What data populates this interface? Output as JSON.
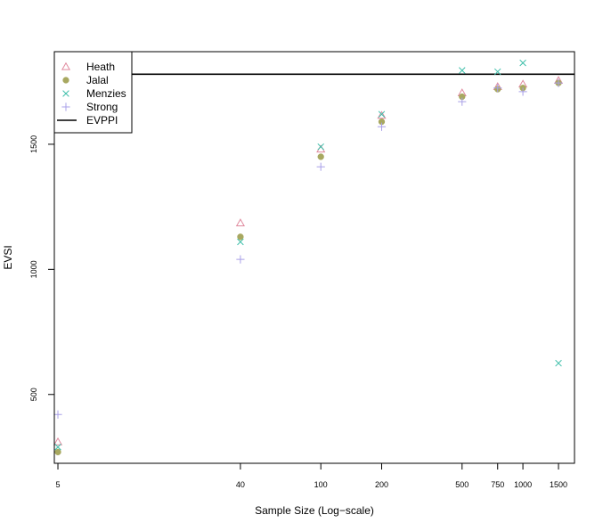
{
  "chart_data": {
    "type": "scatter",
    "title": "",
    "xlabel": "Sample Size (Log−scale)",
    "ylabel": "EVSI",
    "x_scale": "log",
    "x_ticks": [
      5,
      40,
      100,
      200,
      500,
      750,
      1000,
      1500
    ],
    "y_ticks": [
      500,
      1000,
      1500
    ],
    "xlim": [
      4.8,
      1800
    ],
    "ylim": [
      225,
      1870
    ],
    "grid": false,
    "legend_position": "top-left",
    "series": [
      {
        "name": "Heath",
        "marker": "triangle",
        "color": "#e08a9e",
        "x": [
          5,
          40,
          100,
          200,
          500,
          750,
          1000,
          1500
        ],
        "y": [
          310,
          1185,
          1480,
          1615,
          1705,
          1730,
          1740,
          1755
        ]
      },
      {
        "name": "Jalal",
        "marker": "circle",
        "color": "#a8a860",
        "x": [
          5,
          40,
          100,
          200,
          500,
          750,
          1000,
          1500
        ],
        "y": [
          270,
          1130,
          1450,
          1590,
          1690,
          1720,
          1725,
          1745
        ]
      },
      {
        "name": "Menzies",
        "marker": "x",
        "color": "#3fbfaa",
        "x": [
          5,
          40,
          100,
          200,
          500,
          750,
          1000,
          1500
        ],
        "y": [
          290,
          1110,
          1490,
          1620,
          1795,
          1790,
          1825,
          625
        ]
      },
      {
        "name": "Strong",
        "marker": "plus",
        "color": "#a9a0e8",
        "x": [
          5,
          40,
          100,
          200,
          500,
          750,
          1000,
          1500
        ],
        "y": [
          420,
          1040,
          1410,
          1570,
          1670,
          1725,
          1710,
          1745
        ]
      }
    ],
    "reference_lines": [
      {
        "name": "EVPPI",
        "y": 1780,
        "color": "#000000"
      }
    ]
  }
}
